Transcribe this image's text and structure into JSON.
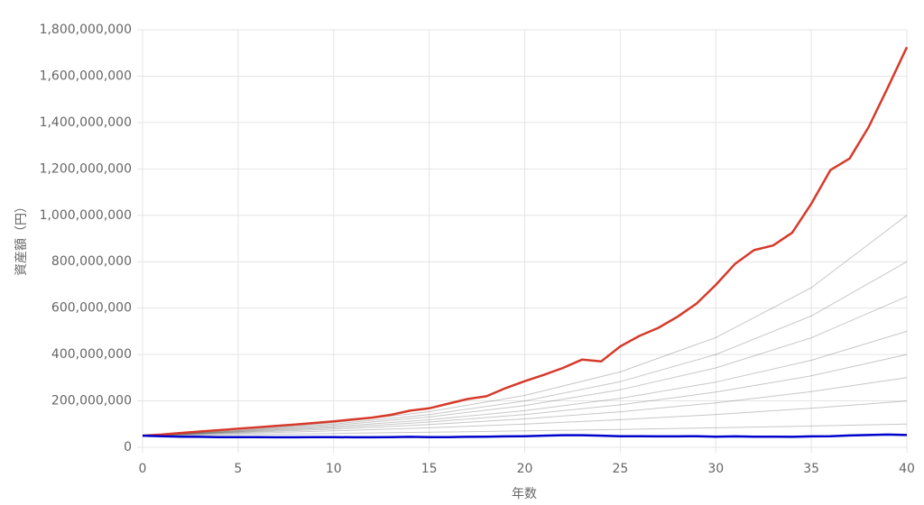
{
  "chart_data": {
    "type": "line",
    "x_label": "年数",
    "y_label": "資産額（円）",
    "xlim": [
      0,
      40
    ],
    "xticks": [
      0,
      5,
      10,
      15,
      20,
      25,
      30,
      35,
      40
    ],
    "ylim": [
      0,
      1800000000
    ],
    "yticks": [
      0,
      {
        "value": 200000000,
        "label": "200,000,000"
      },
      {
        "value": 400000000,
        "label": "400,000,000"
      },
      {
        "value": 600000000,
        "label": "600,000,000"
      },
      {
        "value": 800000000,
        "label": "800,000,000"
      },
      {
        "value": 1000000000,
        "label": "1,000,000,000"
      },
      {
        "value": 1200000000,
        "label": "1,200,000,000"
      },
      {
        "value": 1400000000,
        "label": "1,400,000,000"
      },
      {
        "value": 1600000000,
        "label": "1,600,000,000"
      },
      {
        "value": 1800000000,
        "label": "1,800,000,000"
      }
    ],
    "grid": true,
    "x": [
      0,
      1,
      2,
      3,
      4,
      5,
      6,
      7,
      8,
      9,
      10,
      11,
      12,
      13,
      14,
      15,
      16,
      17,
      18,
      19,
      20,
      21,
      22,
      23,
      24,
      25,
      26,
      27,
      28,
      29,
      30,
      31,
      32,
      33,
      34,
      35,
      36,
      37,
      38,
      39,
      40
    ],
    "series": [
      {
        "color": "rgba(0,0,0,0.22)",
        "x": [
          0,
          5,
          10,
          15,
          20,
          25,
          30,
          35,
          40
        ],
        "values": [
          50000000,
          54500000,
          59500000,
          64800000,
          70700000,
          77100000,
          84100000,
          91700000,
          100000000
        ]
      },
      {
        "color": "rgba(0,0,0,0.22)",
        "x": [
          0,
          5,
          10,
          15,
          20,
          25,
          30,
          35,
          40
        ],
        "values": [
          50000000,
          59500000,
          70700000,
          84100000,
          100000000,
          118900000,
          141400000,
          168200000,
          200000000
        ]
      },
      {
        "color": "rgba(0,0,0,0.22)",
        "x": [
          0,
          5,
          10,
          15,
          20,
          25,
          30,
          35,
          40
        ],
        "values": [
          50000000,
          62600000,
          78200000,
          97900000,
          122500000,
          153300000,
          191700000,
          239800000,
          300000000
        ]
      },
      {
        "color": "rgba(0,0,0,0.22)",
        "x": [
          0,
          5,
          10,
          15,
          20,
          25,
          30,
          35,
          40
        ],
        "values": [
          50000000,
          64800000,
          84100000,
          109000000,
          141000000,
          183000000,
          238000000,
          308000000,
          400000000
        ]
      },
      {
        "color": "rgba(0,0,0,0.22)",
        "x": [
          0,
          5,
          10,
          15,
          20,
          25,
          30,
          35,
          40
        ],
        "values": [
          50000000,
          66700000,
          88900000,
          118600000,
          158000000,
          211000000,
          281000000,
          375000000,
          500000000
        ]
      },
      {
        "color": "rgba(0,0,0,0.22)",
        "x": [
          0,
          5,
          10,
          15,
          20,
          25,
          30,
          35,
          40
        ],
        "values": [
          50000000,
          68900000,
          94900000,
          130800000,
          180000000,
          248000000,
          342000000,
          472000000,
          650000000
        ]
      },
      {
        "color": "rgba(0,0,0,0.22)",
        "x": [
          0,
          5,
          10,
          15,
          20,
          25,
          30,
          35,
          40
        ],
        "values": [
          50000000,
          70700000,
          100000000,
          141000000,
          200000000,
          283000000,
          400000000,
          566000000,
          800000000
        ]
      },
      {
        "color": "rgba(0,0,0,0.22)",
        "x": [
          0,
          5,
          10,
          15,
          20,
          25,
          30,
          35,
          40
        ],
        "values": [
          50000000,
          72700000,
          105700000,
          153700000,
          223600000,
          325000000,
          473000000,
          688000000,
          1000000000
        ]
      },
      {
        "color": "#d63a2a",
        "values": [
          50000000,
          55000000,
          62000000,
          68000000,
          74000000,
          80000000,
          86000000,
          92000000,
          98000000,
          105000000,
          112000000,
          120000000,
          128000000,
          140000000,
          158000000,
          168000000,
          188000000,
          208000000,
          220000000,
          255000000,
          285000000,
          312000000,
          342000000,
          378000000,
          370000000,
          435000000,
          480000000,
          515000000,
          563000000,
          620000000,
          700000000,
          790000000,
          850000000,
          870000000,
          925000000,
          1050000000,
          1195000000,
          1245000000,
          1380000000,
          1550000000,
          1725000000
        ]
      },
      {
        "color": "#0000cc",
        "values": [
          50000000,
          48000000,
          46000000,
          45000000,
          44000000,
          44000000,
          44000000,
          43000000,
          43000000,
          44000000,
          44000000,
          43000000,
          43000000,
          44000000,
          45000000,
          44000000,
          44000000,
          45000000,
          46000000,
          47000000,
          48000000,
          50000000,
          52000000,
          52000000,
          50000000,
          48000000,
          48000000,
          47000000,
          47000000,
          48000000,
          46000000,
          47000000,
          46000000,
          46000000,
          45000000,
          47000000,
          48000000,
          51000000,
          53000000,
          55000000,
          53000000
        ]
      }
    ]
  }
}
